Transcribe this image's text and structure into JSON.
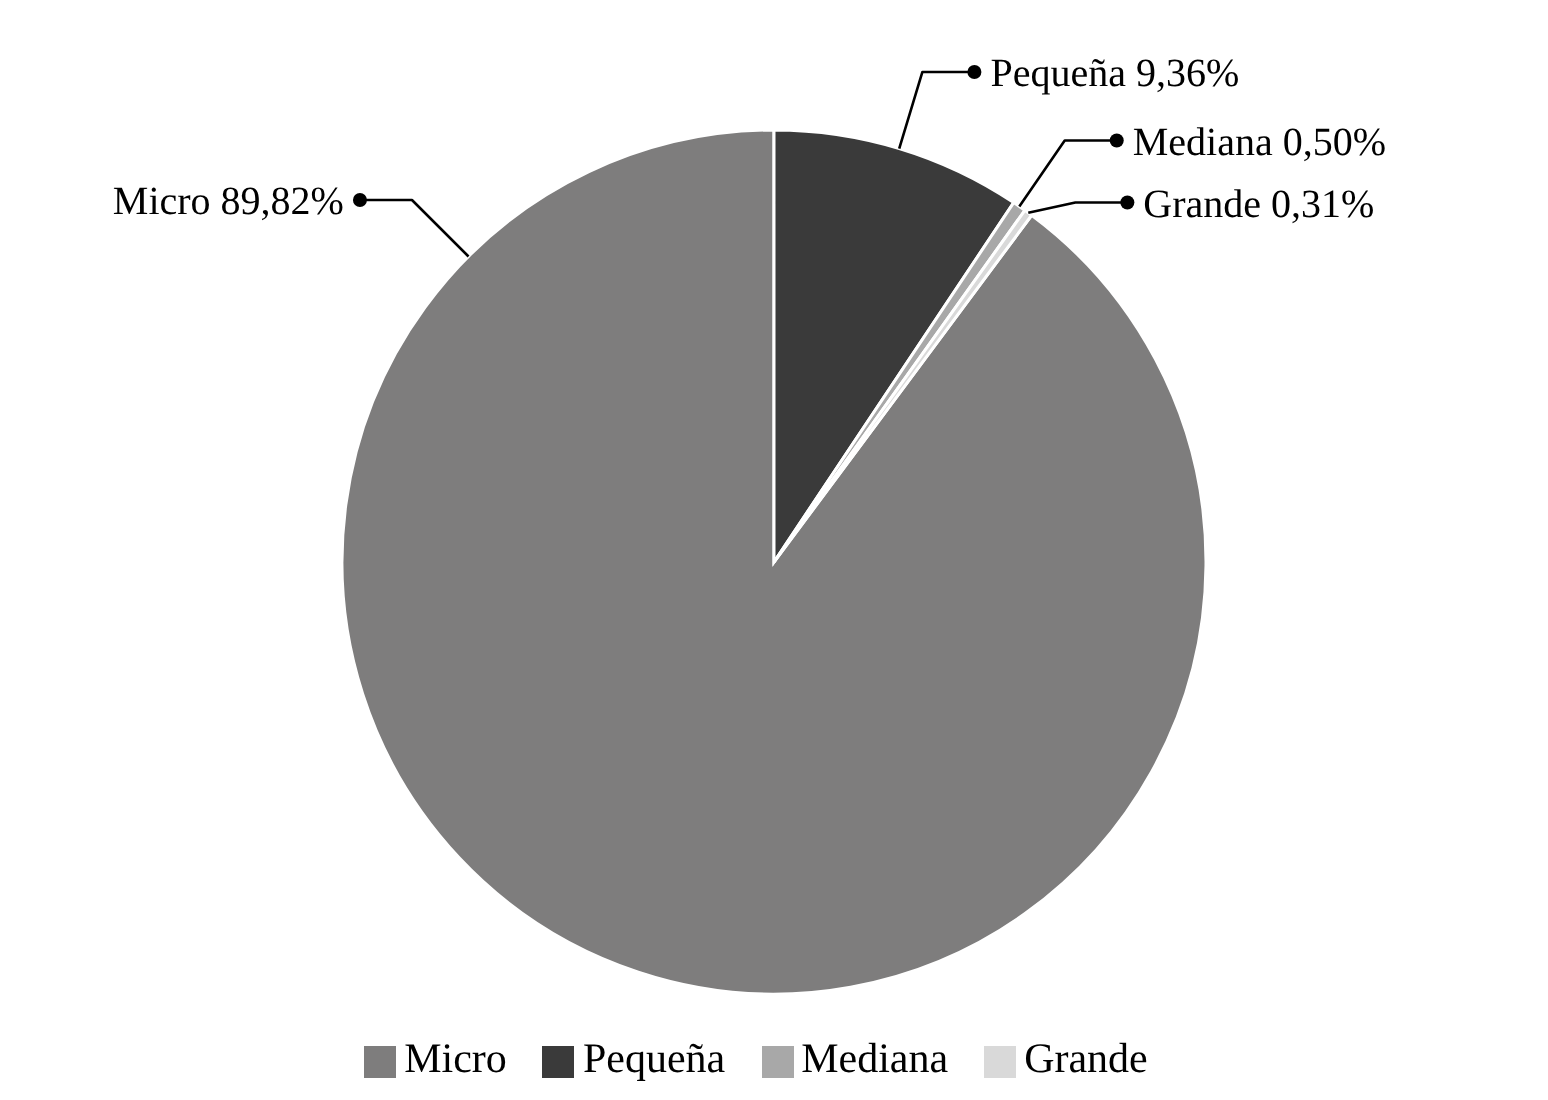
{
  "chart_data": {
    "type": "pie",
    "categories": [
      "Micro",
      "Pequeña",
      "Mediana",
      "Grande"
    ],
    "values": [
      89.82,
      9.36,
      0.5,
      0.31
    ],
    "value_labels": [
      "89,82%",
      "9,36%",
      "0,50%",
      "0,31%"
    ],
    "colors": [
      "#7e7d7d",
      "#3a3a3a",
      "#a8a8a8",
      "#d9d9d9"
    ],
    "legend": "bottom"
  }
}
